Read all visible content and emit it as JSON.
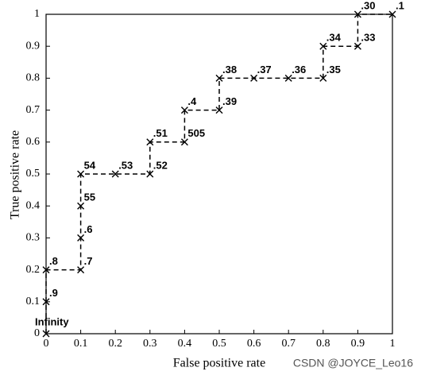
{
  "chart_data": {
    "type": "line",
    "x_label": "False positive rate",
    "y_label": "True positive rate",
    "watermark": "CSDN @JOYCE_Leo16",
    "x": [
      0,
      0,
      0,
      0.1,
      0.1,
      0.1,
      0.1,
      0.2,
      0.3,
      0.3,
      0.4,
      0.4,
      0.5,
      0.5,
      0.6,
      0.7,
      0.8,
      0.8,
      0.9,
      0.9,
      1
    ],
    "values": [
      0,
      0.1,
      0.2,
      0.2,
      0.3,
      0.4,
      0.5,
      0.5,
      0.5,
      0.6,
      0.6,
      0.7,
      0.7,
      0.8,
      0.8,
      0.8,
      0.8,
      0.9,
      0.9,
      1,
      1
    ],
    "point_labels": [
      "Infinity",
      ".9",
      ".8",
      ".7",
      ".6",
      "55",
      "54",
      ".53",
      ".52",
      ".51",
      "505",
      ".4",
      ".39",
      ".38",
      ".37",
      ".36",
      ".35",
      ".34",
      ".33",
      ".30",
      ".1"
    ],
    "color": "#000000",
    "xlim": [
      0,
      1
    ],
    "ylim": [
      0,
      1
    ],
    "xticks": [
      0,
      0.1,
      0.2,
      0.3,
      0.4,
      0.5,
      0.6,
      0.7,
      0.8,
      0.9,
      1
    ],
    "yticks": [
      0,
      0.1,
      0.2,
      0.3,
      0.4,
      0.5,
      0.6,
      0.7,
      0.8,
      0.9,
      1
    ]
  }
}
